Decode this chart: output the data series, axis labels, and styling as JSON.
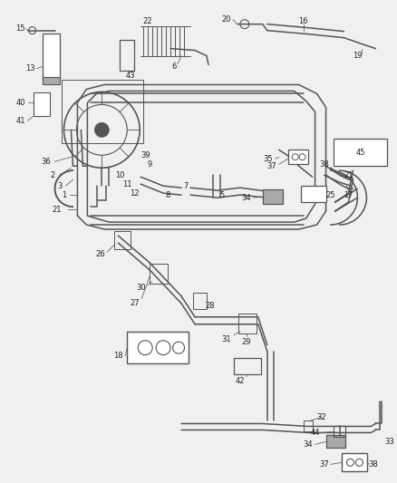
{
  "bg_color": "#f0f0f0",
  "line_color": "#555555",
  "lc2": "#444444",
  "figsize": [
    4.38,
    5.33
  ],
  "dpi": 100
}
